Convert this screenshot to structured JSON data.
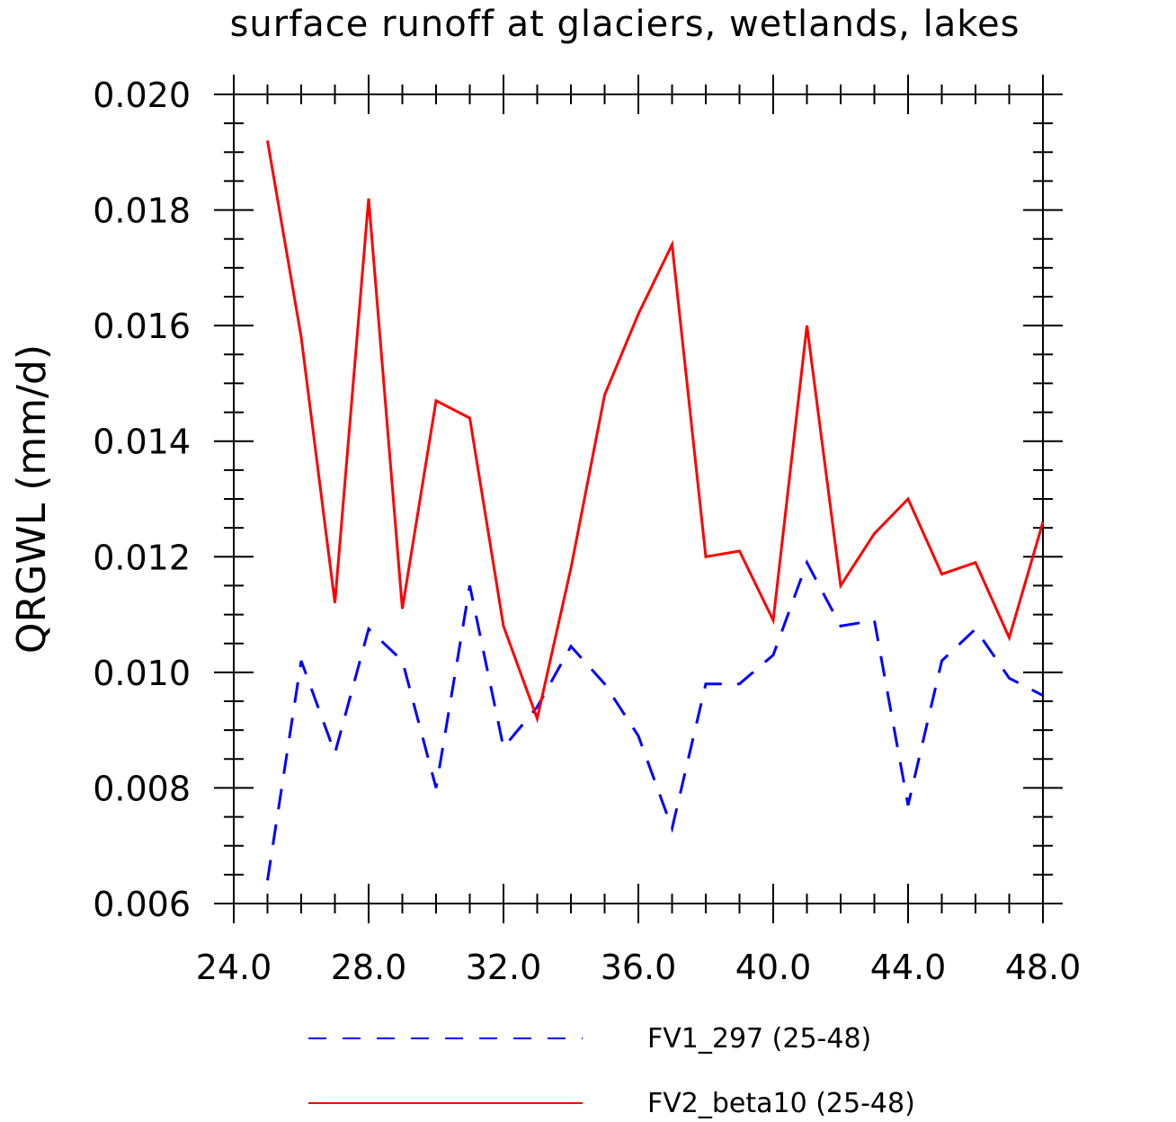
{
  "chart_data": {
    "type": "line",
    "title": "surface runoff at glaciers, wetlands, lakes",
    "ylabel": "QRGWL  (mm/d)",
    "xlabel": "",
    "xlim": [
      24,
      48
    ],
    "ylim": [
      0.006,
      0.02
    ],
    "x_ticks": [
      24,
      28,
      32,
      36,
      40,
      44,
      48
    ],
    "x_tick_labels": [
      "24.0",
      "28.0",
      "32.0",
      "36.0",
      "40.0",
      "44.0",
      "48.0"
    ],
    "y_ticks": [
      0.006,
      0.008,
      0.01,
      0.012,
      0.014,
      0.016,
      0.018,
      0.02
    ],
    "y_tick_labels": [
      "0.006",
      "0.008",
      "0.010",
      "0.012",
      "0.014",
      "0.016",
      "0.018",
      "0.020"
    ],
    "legend_position": "bottom",
    "grid": false,
    "x": [
      25,
      26,
      27,
      28,
      29,
      30,
      31,
      32,
      33,
      34,
      35,
      36,
      37,
      38,
      39,
      40,
      41,
      42,
      43,
      44,
      45,
      46,
      47,
      48
    ],
    "series": [
      {
        "name": "FV1_297 (25-48)",
        "color": "#0000ff",
        "dash": "dashed",
        "values": [
          0.0064,
          0.0102,
          0.0086,
          0.01075,
          0.0102,
          0.008,
          0.0115,
          0.0087,
          0.0094,
          0.01045,
          0.0098,
          0.0089,
          0.0073,
          0.0098,
          0.0098,
          0.0103,
          0.0119,
          0.0108,
          0.0109,
          0.0077,
          0.0102,
          0.01075,
          0.0099,
          0.0096
        ]
      },
      {
        "name": "FV2_beta10 (25-48)",
        "color": "#ff0000",
        "dash": "solid",
        "values": [
          0.0192,
          0.0158,
          0.0112,
          0.0182,
          0.0111,
          0.0147,
          0.0144,
          0.0108,
          0.0092,
          0.0118,
          0.0148,
          0.0162,
          0.0174,
          0.012,
          0.0121,
          0.0109,
          0.016,
          0.0115,
          0.0124,
          0.013,
          0.0117,
          0.0119,
          0.0106,
          0.0126
        ]
      }
    ]
  }
}
